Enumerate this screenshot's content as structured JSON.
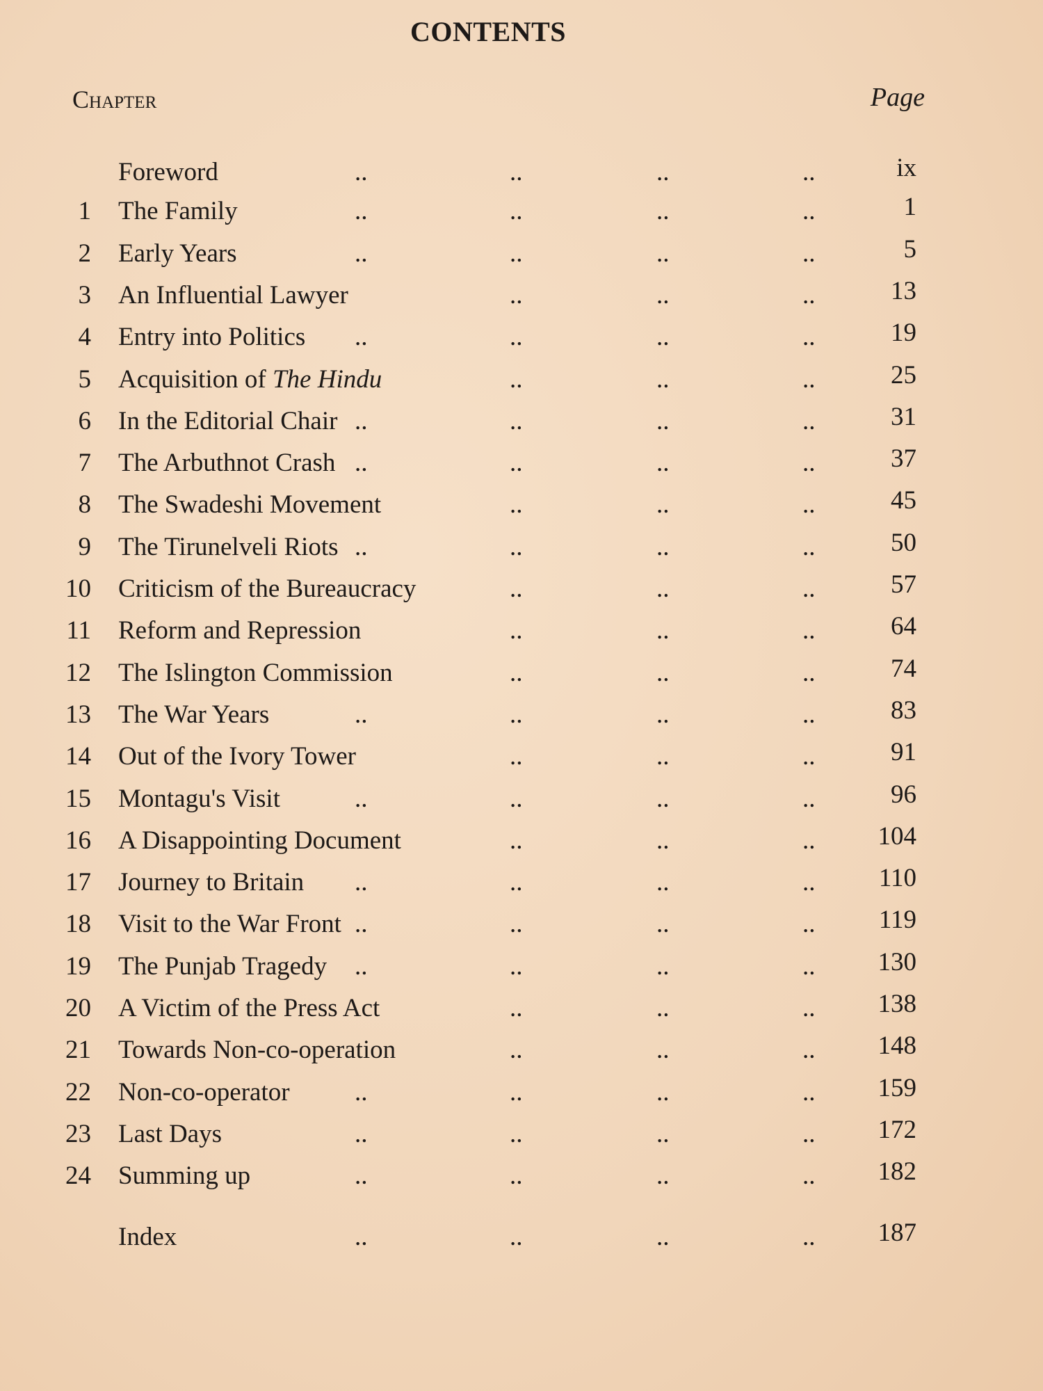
{
  "title": "CONTENTS",
  "header": {
    "chapter": "Chapter",
    "page": "Page"
  },
  "leader": "..",
  "entries": [
    {
      "num": "",
      "title": "Foreword",
      "page": "ix"
    },
    {
      "num": "1",
      "title": "The Family",
      "page": "1"
    },
    {
      "num": "2",
      "title": "Early Years",
      "page": "5"
    },
    {
      "num": "3",
      "title": "An Influential Lawyer",
      "page": "13"
    },
    {
      "num": "4",
      "title": "Entry into Politics",
      "page": "19"
    },
    {
      "num": "5",
      "title": "Acquisition of ",
      "title_italic": "The Hindu",
      "page": "25"
    },
    {
      "num": "6",
      "title": "In the Editorial Chair",
      "page": "31"
    },
    {
      "num": "7",
      "title": "The Arbuthnot Crash",
      "page": "37"
    },
    {
      "num": "8",
      "title": "The Swadeshi Movement",
      "page": "45"
    },
    {
      "num": "9",
      "title": "The Tirunelveli Riots",
      "page": "50"
    },
    {
      "num": "10",
      "title": "Criticism of the Bureaucracy",
      "page": "57"
    },
    {
      "num": "11",
      "title": "Reform and Repression",
      "page": "64"
    },
    {
      "num": "12",
      "title": "The Islington Commission",
      "page": "74"
    },
    {
      "num": "13",
      "title": "The War Years",
      "page": "83"
    },
    {
      "num": "14",
      "title": "Out of the Ivory Tower",
      "page": "91"
    },
    {
      "num": "15",
      "title": "Montagu's Visit",
      "page": "96"
    },
    {
      "num": "16",
      "title": "A Disappointing Document",
      "page": "104"
    },
    {
      "num": "17",
      "title": "Journey to Britain",
      "page": "110"
    },
    {
      "num": "18",
      "title": "Visit to the War Front",
      "page": "119"
    },
    {
      "num": "19",
      "title": "The Punjab Tragedy",
      "page": "130"
    },
    {
      "num": "20",
      "title": "A Victim of the Press Act",
      "page": "138"
    },
    {
      "num": "21",
      "title": "Towards Non-co-operation",
      "page": "148"
    },
    {
      "num": "22",
      "title": "Non-co-operator",
      "page": "159"
    },
    {
      "num": "23",
      "title": "Last Days",
      "page": "172"
    },
    {
      "num": "24",
      "title": "Summing up",
      "page": "182"
    },
    {
      "num": "",
      "title": "Index",
      "page": "187"
    }
  ]
}
